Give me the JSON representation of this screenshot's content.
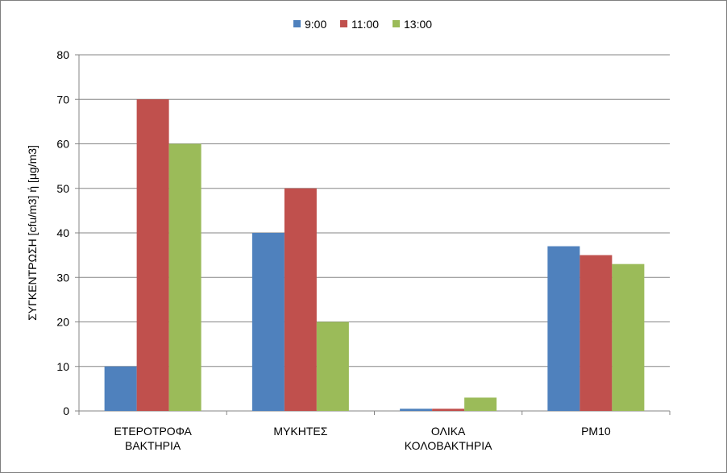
{
  "chart_data": {
    "type": "bar",
    "categories": [
      [
        "ΕΤΕΡΟΤΡΟΦΑ",
        "ΒΑΚΤΗΡΙΑ"
      ],
      [
        "ΜΥΚΗΤΕΣ"
      ],
      [
        "ΟΛΙΚΑ",
        "ΚΟΛΟΒΑΚΤΗΡΙΑ"
      ],
      [
        "PM10"
      ]
    ],
    "series": [
      {
        "name": "9:00",
        "color": "#4f81bd",
        "values": [
          10,
          40,
          0.5,
          37
        ]
      },
      {
        "name": "11:00",
        "color": "#c0504d",
        "values": [
          70,
          50,
          0.5,
          35
        ]
      },
      {
        "name": "13:00",
        "color": "#9bbb59",
        "values": [
          60,
          20,
          3,
          33
        ]
      }
    ],
    "title": "",
    "xlabel": "",
    "ylabel": "ΣΥΓΚΕΝΤΡΩΣΗ [cfu/m3] ή [μg/m3]",
    "ylim": [
      0,
      80
    ],
    "yticks": [
      0,
      10,
      20,
      30,
      40,
      50,
      60,
      70,
      80
    ],
    "grid": true,
    "legend_position": "top"
  }
}
